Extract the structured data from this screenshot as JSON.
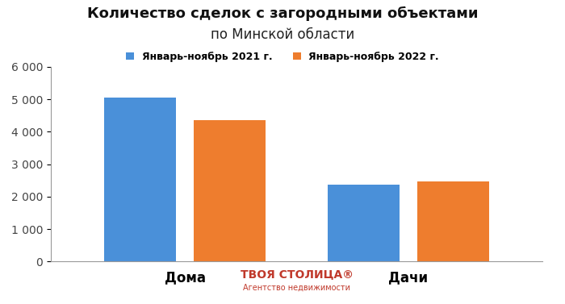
{
  "chart_data": {
    "type": "bar",
    "title": "Количество сделок с загородными объектами",
    "subtitle": "по Минской области",
    "categories": [
      "Дома",
      "Дачи"
    ],
    "series": [
      {
        "name": "Январь-ноябрь 2021 г.",
        "color": "#4a90d9",
        "values": [
          5050,
          2360
        ]
      },
      {
        "name": "Январь-ноябрь 2022 г.",
        "color": "#ee7d2e",
        "values": [
          4360,
          2460
        ]
      }
    ],
    "ylim": [
      0,
      6000
    ],
    "yticks": [
      0,
      {
        "value": 1000,
        "label": "1 000"
      },
      {
        "value": 2000,
        "label": "2 000"
      },
      {
        "value": 3000,
        "label": "3 000"
      },
      {
        "value": 4000,
        "label": "4 000"
      },
      {
        "value": 5000,
        "label": "5 000"
      },
      {
        "value": 6000,
        "label": "6 000"
      }
    ],
    "grid": false,
    "legend": "upper center",
    "annotations": [
      "ТВОЯ СТОЛИЦА®",
      "Агентство недвижимости"
    ]
  }
}
